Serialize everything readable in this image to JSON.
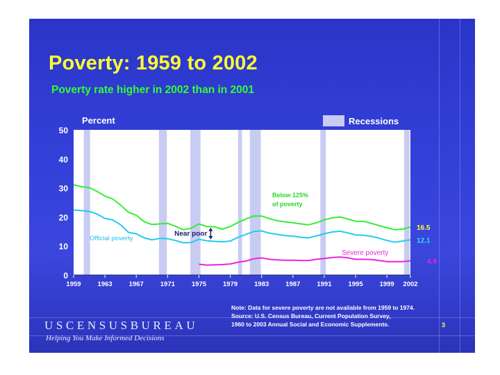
{
  "slide": {
    "title": "Poverty:  1959 to 2002",
    "subtitle": "Poverty rate higher in 2002 than in 2001",
    "note": "Note:  Data for severe poverty are not available from 1959 to 1974.",
    "source_line1": "Source:  U.S. Census Bureau, Current Population Survey,",
    "source_line2": "1960 to 2003 Annual Social and Economic Supplements.",
    "brand": "USCENSUSBUREAU",
    "tagline": "Helping You Make Informed Decisions",
    "page_number": "3"
  },
  "colors": {
    "title": "#ffff33",
    "subtitle": "#33ff33",
    "near_poor_line": "#33ee33",
    "official_line": "#22ccee",
    "severe_line": "#ee22dd",
    "recession": "#c8ccf2",
    "plot_bg": "#ffffff"
  },
  "chart_data": {
    "type": "line",
    "title": "Poverty rate higher in 2002 than in 2001",
    "ylabel": "Percent",
    "xlabel": "",
    "ylim": [
      0,
      50
    ],
    "xlim": [
      1959,
      2002
    ],
    "y_ticks": [
      "0",
      "10",
      "20",
      "30",
      "40",
      "50"
    ],
    "x_ticks": [
      "1959",
      "1963",
      "1967",
      "1971",
      "1975",
      "1979",
      "1983",
      "1987",
      "1991",
      "1995",
      "1999",
      "2002"
    ],
    "grid": false,
    "legend": {
      "recessions_label": "Recessions",
      "position": "top-right"
    },
    "recessions": [
      [
        1960.3,
        1961.1
      ],
      [
        1969.9,
        1970.9
      ],
      [
        1973.9,
        1975.2
      ],
      [
        1980.0,
        1980.5
      ],
      [
        1981.5,
        1982.9
      ],
      [
        1990.5,
        1991.2
      ],
      [
        2001.2,
        2001.9
      ]
    ],
    "series": [
      {
        "name": "Below 125% of poverty",
        "label_line1": "Below 125%",
        "label_line2": "of poverty",
        "end_label": "16.5",
        "color_key": "near_poor_line",
        "x": [
          1959,
          1960,
          1961,
          1962,
          1963,
          1964,
          1965,
          1966,
          1967,
          1968,
          1969,
          1970,
          1971,
          1972,
          1973,
          1974,
          1975,
          1976,
          1977,
          1978,
          1979,
          1980,
          1981,
          1982,
          1983,
          1984,
          1985,
          1986,
          1987,
          1988,
          1989,
          1990,
          1991,
          1992,
          1993,
          1994,
          1995,
          1996,
          1997,
          1998,
          1999,
          2000,
          2001,
          2002
        ],
        "values": [
          31.1,
          30.4,
          30.1,
          28.8,
          27.2,
          26.2,
          24.1,
          21.6,
          20.6,
          18.4,
          17.4,
          17.6,
          17.8,
          16.8,
          15.6,
          16.1,
          17.6,
          16.7,
          16.6,
          15.8,
          16.7,
          18.1,
          19.3,
          20.3,
          20.3,
          19.4,
          18.7,
          18.3,
          18.0,
          17.6,
          17.3,
          18.0,
          19.0,
          19.7,
          20.0,
          19.3,
          18.5,
          18.5,
          17.8,
          17.0,
          16.3,
          15.6,
          15.8,
          16.5
        ]
      },
      {
        "name": "Official poverty",
        "label_line1": "Official poverty",
        "end_label": "12.1",
        "color_key": "official_line",
        "x": [
          1959,
          1960,
          1961,
          1962,
          1963,
          1964,
          1965,
          1966,
          1967,
          1968,
          1969,
          1970,
          1971,
          1972,
          1973,
          1974,
          1975,
          1976,
          1977,
          1978,
          1979,
          1980,
          1981,
          1982,
          1983,
          1984,
          1985,
          1986,
          1987,
          1988,
          1989,
          1990,
          1991,
          1992,
          1993,
          1994,
          1995,
          1996,
          1997,
          1998,
          1999,
          2000,
          2001,
          2002
        ],
        "values": [
          22.4,
          22.2,
          21.9,
          21.0,
          19.5,
          19.0,
          17.3,
          14.7,
          14.2,
          12.8,
          12.1,
          12.6,
          12.5,
          11.9,
          11.1,
          11.2,
          12.3,
          11.8,
          11.6,
          11.4,
          11.7,
          13.0,
          14.0,
          15.0,
          15.2,
          14.4,
          14.0,
          13.6,
          13.4,
          13.0,
          12.8,
          13.5,
          14.2,
          14.8,
          15.1,
          14.5,
          13.8,
          13.7,
          13.3,
          12.7,
          11.9,
          11.3,
          11.7,
          12.1
        ]
      },
      {
        "name": "Severe poverty",
        "label_line1": "Severe poverty",
        "end_label": "4.9",
        "color_key": "severe_line",
        "x": [
          1975,
          1976,
          1977,
          1978,
          1979,
          1980,
          1981,
          1982,
          1983,
          1984,
          1985,
          1986,
          1987,
          1988,
          1989,
          1990,
          1991,
          1992,
          1993,
          1994,
          1995,
          1996,
          1997,
          1998,
          1999,
          2000,
          2001,
          2002
        ],
        "values": [
          3.7,
          3.4,
          3.5,
          3.6,
          3.8,
          4.4,
          4.8,
          5.6,
          5.9,
          5.4,
          5.2,
          5.1,
          5.1,
          5.0,
          5.0,
          5.4,
          5.7,
          6.0,
          6.2,
          5.9,
          5.4,
          5.4,
          5.3,
          5.0,
          4.6,
          4.6,
          4.6,
          4.9
        ]
      }
    ],
    "annotation": {
      "label": "Near poor"
    }
  }
}
